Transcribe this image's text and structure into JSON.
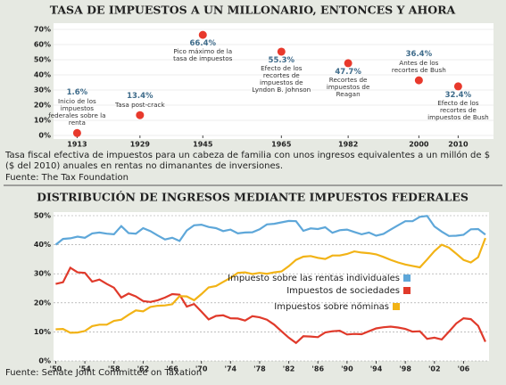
{
  "chart_data": [
    {
      "type": "scatter",
      "title": "TASA DE IMPUESTOS A UN MILLONARIO, ENTONCES Y AHORA",
      "subtitle": "Tasa fiscal efectiva de impuestos para un cabeza de familia con unos ingresos equivalentes a un millón de $ ($ del 2010) anuales en rentas no dimanantes de inversiones.",
      "source": "Fuente: The Tax Foundation",
      "x": [
        1913,
        1929,
        1945,
        1965,
        1982,
        2000,
        2010
      ],
      "values": [
        1.6,
        13.4,
        66.4,
        55.3,
        47.7,
        36.4,
        32.4
      ],
      "value_labels": [
        "1.6%",
        "13.4%",
        "66.4%",
        "55.3%",
        "47.7%",
        "36.4%",
        "32.4%"
      ],
      "annotations": [
        "Inicio de los impuestos federales sobre la renta",
        "Tasa post-crack",
        "Pico máximo de la tasa de impuestos",
        "Efecto de los recortes de impuestos de Lyndon B. Johnson",
        "Recortes de impuestos de Reagan",
        "Antes de los recortes de Bush",
        "Efecto de los recortes de impuestos de Bush"
      ],
      "color": "#e8392c",
      "xlim": [
        1907,
        2019
      ],
      "xticks": [
        1913,
        1929,
        1945,
        1965,
        1982,
        2000,
        2010
      ],
      "ylim": [
        0,
        70
      ],
      "yticks": [
        {
          "value": 0,
          "label": "0%"
        },
        {
          "value": 10,
          "label": "10%"
        },
        {
          "value": 20,
          "label": "20%"
        },
        {
          "value": 30,
          "label": "30%"
        },
        {
          "value": 40,
          "label": "40%"
        },
        {
          "value": 50,
          "label": "50%"
        },
        {
          "value": 60,
          "label": "60%"
        },
        {
          "value": 70,
          "label": "70%"
        }
      ],
      "grid": true
    },
    {
      "type": "line",
      "title": "DISTRIBUCIÓN DE INGRESOS MEDIANTE IMPUESTOS FEDERALES",
      "source": "Fuente: Senate Joint Committee on Taxation",
      "x": [
        1950,
        1951,
        1952,
        1953,
        1954,
        1955,
        1956,
        1957,
        1958,
        1959,
        1960,
        1961,
        1962,
        1963,
        1964,
        1965,
        1966,
        1967,
        1968,
        1969,
        1970,
        1971,
        1972,
        1973,
        1974,
        1975,
        1976,
        1977,
        1978,
        1979,
        1980,
        1981,
        1982,
        1983,
        1984,
        1985,
        1986,
        1987,
        1988,
        1989,
        1990,
        1991,
        1992,
        1993,
        1994,
        1995,
        1996,
        1997,
        1998,
        1999,
        2000,
        2001,
        2002,
        2003,
        2004,
        2005,
        2006,
        2007,
        2008,
        2009
      ],
      "series": [
        {
          "name": "Impuesto sobre las rentas individuales",
          "color": "#5ea7d9",
          "values": [
            40,
            42,
            42.2,
            42.8,
            42.4,
            43.9,
            44.2,
            43.8,
            43.6,
            46.4,
            44,
            43.8,
            45.7,
            44.7,
            43.2,
            41.8,
            42.4,
            41.3,
            44.9,
            46.7,
            46.9,
            46.1,
            45.7,
            44.7,
            45.2,
            43.9,
            44.2,
            44.3,
            45.3,
            47,
            47.2,
            47.7,
            48.2,
            48.1,
            44.8,
            45.6,
            45.4,
            46,
            44.1,
            45,
            45.2,
            44.4,
            43.6,
            44.2,
            43.1,
            43.7,
            45.2,
            46.7,
            48.1,
            48.1,
            49.6,
            49.9,
            46.3,
            44.5,
            43,
            43.1,
            43.4,
            45.3,
            45.4,
            43.5
          ]
        },
        {
          "name": "Impuestos de sociedades",
          "color": "#e03a2b",
          "values": [
            26.5,
            27.1,
            32.1,
            30.5,
            30.3,
            27.3,
            28,
            26.5,
            25.2,
            21.8,
            23.2,
            22.2,
            20.6,
            20.3,
            20.9,
            21.8,
            23,
            22.8,
            18.7,
            19.6,
            17,
            14.3,
            15.5,
            15.7,
            14.7,
            14.6,
            13.9,
            15.4,
            15,
            14.2,
            12.5,
            10.2,
            8,
            6.2,
            8.5,
            8.4,
            8.2,
            9.8,
            10.2,
            10.4,
            9.1,
            9.3,
            9.2,
            10.2,
            11.2,
            11.6,
            11.8,
            11.5,
            11,
            10.1,
            10.2,
            7.6,
            8,
            7.4,
            10.1,
            12.9,
            14.7,
            14.4,
            12.1,
            6.6
          ]
        },
        {
          "name": "Impuestos sobre nóminas",
          "color": "#f2b316",
          "values": [
            10.9,
            11,
            9.7,
            9.8,
            10.3,
            12,
            12.5,
            12.5,
            13.8,
            14.2,
            15.9,
            17.4,
            17.1,
            18.6,
            19,
            19.1,
            19.5,
            22.3,
            22.2,
            20.9,
            23,
            25.3,
            25.8,
            27.2,
            28.6,
            30.3,
            30.5,
            29.9,
            30.3,
            30,
            30.5,
            30.8,
            32.6,
            34.8,
            35.9,
            36.1,
            35.5,
            35.1,
            36.3,
            36.3,
            36.8,
            37.7,
            37.3,
            37.1,
            36.7,
            35.8,
            34.8,
            33.9,
            33.2,
            32.7,
            32.2,
            34.9,
            37.8,
            40,
            39,
            36.9,
            34.8,
            33.9,
            35.7,
            42.3
          ]
        }
      ],
      "xlim": [
        1949.7,
        2009.5
      ],
      "xticks": [
        {
          "value": 1950,
          "label": "'50"
        },
        {
          "value": 1954,
          "label": "'54"
        },
        {
          "value": 1958,
          "label": "'58"
        },
        {
          "value": 1962,
          "label": "'62"
        },
        {
          "value": 1966,
          "label": "'66"
        },
        {
          "value": 1970,
          "label": "'70"
        },
        {
          "value": 1974,
          "label": "'74"
        },
        {
          "value": 1978,
          "label": "'78"
        },
        {
          "value": 1982,
          "label": "'82"
        },
        {
          "value": 1986,
          "label": "'86"
        },
        {
          "value": 1990,
          "label": "'90"
        },
        {
          "value": 1994,
          "label": "'94"
        },
        {
          "value": 1998,
          "label": "'98"
        },
        {
          "value": 2002,
          "label": "'02"
        },
        {
          "value": 2006,
          "label": "'06"
        }
      ],
      "ylim": [
        0,
        50
      ],
      "yticks": [
        {
          "value": 0,
          "label": "0%"
        },
        {
          "value": 10,
          "label": "10%"
        },
        {
          "value": 20,
          "label": "20%"
        },
        {
          "value": 30,
          "label": "30%"
        },
        {
          "value": 40,
          "label": "40%"
        },
        {
          "value": 50,
          "label": "50%"
        }
      ],
      "grid": true
    }
  ]
}
